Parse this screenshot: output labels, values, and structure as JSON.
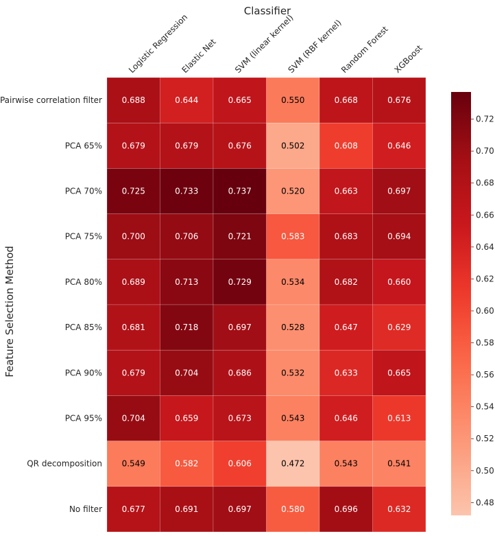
{
  "chart_data": {
    "type": "heatmap",
    "title": "",
    "xlabel": "Classifier",
    "ylabel": "Feature Selection Method",
    "columns": [
      "Logistic Regression",
      "Elastic Net",
      "SVM (linear kernel)",
      "SVM (RBF kernel)",
      "Random Forest",
      "XGBoost"
    ],
    "rows": [
      "Pairwise correlation filter",
      "PCA 65%",
      "PCA 70%",
      "PCA 75%",
      "PCA 80%",
      "PCA 85%",
      "PCA 90%",
      "PCA 95%",
      "QR decomposition",
      "No filter"
    ],
    "values": [
      [
        0.688,
        0.644,
        0.665,
        0.55,
        0.668,
        0.676
      ],
      [
        0.679,
        0.679,
        0.676,
        0.502,
        0.608,
        0.646
      ],
      [
        0.725,
        0.733,
        0.737,
        0.52,
        0.663,
        0.697
      ],
      [
        0.7,
        0.706,
        0.721,
        0.583,
        0.683,
        0.694
      ],
      [
        0.689,
        0.713,
        0.729,
        0.534,
        0.682,
        0.66
      ],
      [
        0.681,
        0.718,
        0.697,
        0.528,
        0.647,
        0.629
      ],
      [
        0.679,
        0.704,
        0.686,
        0.532,
        0.633,
        0.665
      ],
      [
        0.704,
        0.659,
        0.673,
        0.543,
        0.646,
        0.613
      ],
      [
        0.549,
        0.582,
        0.606,
        0.472,
        0.543,
        0.541
      ],
      [
        0.677,
        0.691,
        0.697,
        0.58,
        0.696,
        0.632
      ]
    ],
    "value_format": "0.000",
    "colormap": "Reds",
    "vmin": 0.472,
    "vmax": 0.737,
    "colorbar_ticks": [
      0.48,
      0.5,
      0.52,
      0.54,
      0.56,
      0.58,
      0.6,
      0.62,
      0.64,
      0.66,
      0.68,
      0.7,
      0.72
    ],
    "colorbar_tick_labels": [
      "0.48",
      "0.50",
      "0.52",
      "0.54",
      "0.56",
      "0.58",
      "0.60",
      "0.62",
      "0.64",
      "0.66",
      "0.68",
      "0.70",
      "0.72"
    ],
    "x_label_position": "top",
    "x_tick_rotation": "diagonal",
    "colorbar_position": "right",
    "grid": false,
    "legend": "none"
  },
  "colors": {
    "background": "#ffffff",
    "cell_border": "#ffffff",
    "text_dark": "#000000",
    "text_light": "#ffffff",
    "axis_text": "#262626",
    "colormap_stops": [
      "#fff5f0",
      "#fee0d2",
      "#fcbba1",
      "#fc9272",
      "#fb6a4a",
      "#ef3b2c",
      "#cb181d",
      "#a50f15",
      "#67000d"
    ]
  }
}
